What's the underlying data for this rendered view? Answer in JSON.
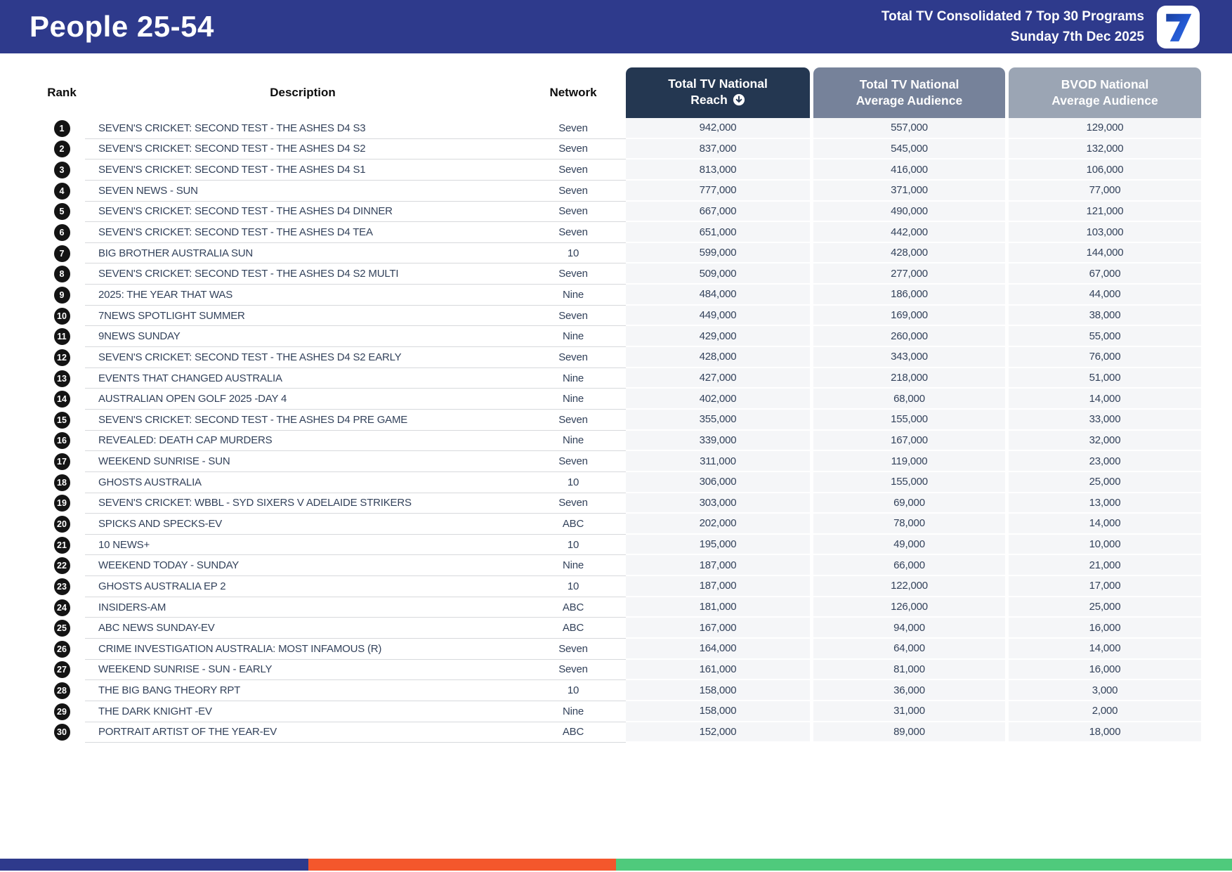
{
  "header": {
    "title": "People 25-54",
    "subtitle_line1": "Total TV Consolidated 7 Top 30 Programs",
    "subtitle_line2": "Sunday 7th Dec 2025",
    "logo": "seven-network-logo"
  },
  "columns": {
    "rank": "Rank",
    "description": "Description",
    "network": "Network",
    "reach_line1": "Total TV National",
    "reach_line2": "Reach",
    "reach_sort_icon": "down-arrow-circle-icon",
    "avg_line1": "Total TV National",
    "avg_line2": "Average Audience",
    "bvod_line1": "BVOD National",
    "bvod_line2": "Average Audience"
  },
  "rows": [
    {
      "rank": "1",
      "description": "SEVEN'S CRICKET: SECOND TEST - THE ASHES D4 S3",
      "network": "Seven",
      "reach": "942,000",
      "avg": "557,000",
      "bvod": "129,000"
    },
    {
      "rank": "2",
      "description": "SEVEN'S CRICKET: SECOND TEST - THE ASHES D4 S2",
      "network": "Seven",
      "reach": "837,000",
      "avg": "545,000",
      "bvod": "132,000"
    },
    {
      "rank": "3",
      "description": "SEVEN'S CRICKET: SECOND TEST - THE ASHES D4 S1",
      "network": "Seven",
      "reach": "813,000",
      "avg": "416,000",
      "bvod": "106,000"
    },
    {
      "rank": "4",
      "description": "SEVEN NEWS - SUN",
      "network": "Seven",
      "reach": "777,000",
      "avg": "371,000",
      "bvod": "77,000"
    },
    {
      "rank": "5",
      "description": "SEVEN'S CRICKET: SECOND TEST - THE ASHES D4 DINNER",
      "network": "Seven",
      "reach": "667,000",
      "avg": "490,000",
      "bvod": "121,000"
    },
    {
      "rank": "6",
      "description": "SEVEN'S CRICKET: SECOND TEST - THE ASHES D4 TEA",
      "network": "Seven",
      "reach": "651,000",
      "avg": "442,000",
      "bvod": "103,000"
    },
    {
      "rank": "7",
      "description": "BIG BROTHER AUSTRALIA SUN",
      "network": "10",
      "reach": "599,000",
      "avg": "428,000",
      "bvod": "144,000"
    },
    {
      "rank": "8",
      "description": "SEVEN'S CRICKET: SECOND TEST - THE ASHES D4 S2 MULTI",
      "network": "Seven",
      "reach": "509,000",
      "avg": "277,000",
      "bvod": "67,000"
    },
    {
      "rank": "9",
      "description": "2025: THE YEAR THAT WAS",
      "network": "Nine",
      "reach": "484,000",
      "avg": "186,000",
      "bvod": "44,000"
    },
    {
      "rank": "10",
      "description": "7NEWS SPOTLIGHT SUMMER",
      "network": "Seven",
      "reach": "449,000",
      "avg": "169,000",
      "bvod": "38,000"
    },
    {
      "rank": "11",
      "description": "9NEWS SUNDAY",
      "network": "Nine",
      "reach": "429,000",
      "avg": "260,000",
      "bvod": "55,000"
    },
    {
      "rank": "12",
      "description": "SEVEN'S CRICKET: SECOND TEST - THE ASHES D4 S2 EARLY",
      "network": "Seven",
      "reach": "428,000",
      "avg": "343,000",
      "bvod": "76,000"
    },
    {
      "rank": "13",
      "description": "EVENTS THAT CHANGED AUSTRALIA",
      "network": "Nine",
      "reach": "427,000",
      "avg": "218,000",
      "bvod": "51,000"
    },
    {
      "rank": "14",
      "description": "AUSTRALIAN OPEN GOLF 2025 -DAY 4",
      "network": "Nine",
      "reach": "402,000",
      "avg": "68,000",
      "bvod": "14,000"
    },
    {
      "rank": "15",
      "description": "SEVEN'S CRICKET: SECOND TEST - THE ASHES D4 PRE GAME",
      "network": "Seven",
      "reach": "355,000",
      "avg": "155,000",
      "bvod": "33,000"
    },
    {
      "rank": "16",
      "description": "REVEALED: DEATH CAP MURDERS",
      "network": "Nine",
      "reach": "339,000",
      "avg": "167,000",
      "bvod": "32,000"
    },
    {
      "rank": "17",
      "description": "WEEKEND SUNRISE - SUN",
      "network": "Seven",
      "reach": "311,000",
      "avg": "119,000",
      "bvod": "23,000"
    },
    {
      "rank": "18",
      "description": "GHOSTS AUSTRALIA",
      "network": "10",
      "reach": "306,000",
      "avg": "155,000",
      "bvod": "25,000"
    },
    {
      "rank": "19",
      "description": "SEVEN'S CRICKET: WBBL - SYD SIXERS V ADELAIDE STRIKERS",
      "network": "Seven",
      "reach": "303,000",
      "avg": "69,000",
      "bvod": "13,000"
    },
    {
      "rank": "20",
      "description": "SPICKS AND SPECKS-EV",
      "network": "ABC",
      "reach": "202,000",
      "avg": "78,000",
      "bvod": "14,000"
    },
    {
      "rank": "21",
      "description": "10 NEWS+",
      "network": "10",
      "reach": "195,000",
      "avg": "49,000",
      "bvod": "10,000"
    },
    {
      "rank": "22",
      "description": "WEEKEND TODAY - SUNDAY",
      "network": "Nine",
      "reach": "187,000",
      "avg": "66,000",
      "bvod": "21,000"
    },
    {
      "rank": "23",
      "description": "GHOSTS AUSTRALIA EP 2",
      "network": "10",
      "reach": "187,000",
      "avg": "122,000",
      "bvod": "17,000"
    },
    {
      "rank": "24",
      "description": "INSIDERS-AM",
      "network": "ABC",
      "reach": "181,000",
      "avg": "126,000",
      "bvod": "25,000"
    },
    {
      "rank": "25",
      "description": "ABC NEWS SUNDAY-EV",
      "network": "ABC",
      "reach": "167,000",
      "avg": "94,000",
      "bvod": "16,000"
    },
    {
      "rank": "26",
      "description": "CRIME INVESTIGATION AUSTRALIA: MOST INFAMOUS (R)",
      "network": "Seven",
      "reach": "164,000",
      "avg": "64,000",
      "bvod": "14,000"
    },
    {
      "rank": "27",
      "description": "WEEKEND SUNRISE - SUN - EARLY",
      "network": "Seven",
      "reach": "161,000",
      "avg": "81,000",
      "bvod": "16,000"
    },
    {
      "rank": "28",
      "description": "THE BIG BANG THEORY RPT",
      "network": "10",
      "reach": "158,000",
      "avg": "36,000",
      "bvod": "3,000"
    },
    {
      "rank": "29",
      "description": "THE DARK KNIGHT -EV",
      "network": "Nine",
      "reach": "158,000",
      "avg": "31,000",
      "bvod": "2,000"
    },
    {
      "rank": "30",
      "description": "PORTRAIT ARTIST OF THE YEAR-EV",
      "network": "ABC",
      "reach": "152,000",
      "avg": "89,000",
      "bvod": "18,000"
    }
  ],
  "theme": {
    "brand_blue": "#2e3a8c",
    "reach_header_bg": "#243751",
    "avg_header_bg": "#76829a",
    "bvod_header_bg": "#9ba5b4",
    "col_bg": "#f5f6f8",
    "footer_blue": "#2e3a8c",
    "footer_orange": "#f4572c",
    "footer_green": "#4fca7c"
  }
}
